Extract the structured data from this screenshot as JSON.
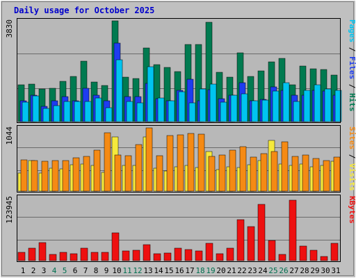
{
  "title": "Daily usage for October 2025",
  "colors": {
    "background": "#c0c0c0",
    "plot_bg": "#b8b8b8",
    "grid": "#6a6a6a",
    "title": "#0000cc",
    "pages": "#00c4f0",
    "files": "#1e3cf0",
    "hits": "#007a50",
    "visits": "#f5e93c",
    "sites": "#f58a14",
    "kbytes": "#ee1010",
    "weekend_label": "#007050",
    "weekday_label": "#000000"
  },
  "chart_data": [
    {
      "type": "bar",
      "panel": "top",
      "axis_max_label": "3830",
      "ylim": [
        0,
        3830
      ],
      "right_label": [
        "Pages",
        "Files",
        "Hits"
      ],
      "categories": [
        "1",
        "2",
        "3",
        "4",
        "5",
        "6",
        "7",
        "8",
        "9",
        "10",
        "11",
        "12",
        "13",
        "14",
        "15",
        "16",
        "17",
        "18",
        "19",
        "20",
        "21",
        "22",
        "23",
        "24",
        "25",
        "26",
        "27",
        "28",
        "29",
        "30",
        "31"
      ],
      "weekend_days": [
        4,
        5,
        11,
        12,
        18,
        19,
        25,
        26
      ],
      "series": [
        {
          "name": "Hits",
          "color": "#007a50",
          "values": [
            1400,
            1420,
            1230,
            1270,
            1530,
            1720,
            2300,
            1510,
            1380,
            3830,
            1700,
            1640,
            2790,
            2170,
            2060,
            1910,
            2940,
            2930,
            3790,
            1870,
            1680,
            2620,
            1720,
            1930,
            2270,
            2400,
            1400,
            2120,
            2020,
            1970,
            1780
          ]
        },
        {
          "name": "Files",
          "color": "#1e3cf0",
          "values": [
            790,
            1000,
            580,
            780,
            940,
            790,
            1280,
            1000,
            780,
            2980,
            950,
            950,
            1440,
            880,
            800,
            1190,
            1600,
            790,
            1220,
            880,
            1000,
            1480,
            800,
            850,
            1320,
            1200,
            1000,
            1000,
            1200,
            1150,
            1000
          ]
        },
        {
          "name": "Pages",
          "color": "#00c4f0",
          "values": [
            750,
            990,
            490,
            600,
            760,
            760,
            760,
            890,
            530,
            2350,
            760,
            710,
            2090,
            890,
            780,
            1140,
            710,
            1250,
            1430,
            740,
            1000,
            1050,
            800,
            820,
            1150,
            1470,
            770,
            1180,
            1390,
            1250,
            1200
          ]
        }
      ]
    },
    {
      "type": "bar",
      "panel": "middle",
      "axis_max_label": "1044",
      "ylim": [
        0,
        1044
      ],
      "right_label": [
        "Sites",
        "Visits"
      ],
      "categories": [
        "1",
        "2",
        "3",
        "4",
        "5",
        "6",
        "7",
        "8",
        "9",
        "10",
        "11",
        "12",
        "13",
        "14",
        "15",
        "16",
        "17",
        "18",
        "19",
        "20",
        "21",
        "22",
        "23",
        "24",
        "25",
        "26",
        "27",
        "28",
        "29",
        "30",
        "31"
      ],
      "series": [
        {
          "name": "Visits",
          "color": "#f5e93c",
          "values": [
            300,
            500,
            300,
            380,
            370,
            440,
            450,
            430,
            310,
            890,
            420,
            420,
            890,
            380,
            330,
            400,
            430,
            390,
            650,
            350,
            400,
            390,
            440,
            510,
            840,
            450,
            420,
            450,
            400,
            430,
            490
          ]
        },
        {
          "name": "Sites",
          "color": "#f58a14",
          "values": [
            520,
            510,
            490,
            510,
            500,
            550,
            570,
            680,
            960,
            600,
            590,
            770,
            1044,
            580,
            920,
            930,
            950,
            940,
            570,
            600,
            680,
            730,
            560,
            620,
            650,
            810,
            570,
            600,
            540,
            510,
            560
          ]
        }
      ]
    },
    {
      "type": "bar",
      "panel": "bottom",
      "axis_max_label": "123945",
      "ylim": [
        0,
        123945
      ],
      "right_label": [
        "KBytes"
      ],
      "categories": [
        "1",
        "2",
        "3",
        "4",
        "5",
        "6",
        "7",
        "8",
        "9",
        "10",
        "11",
        "12",
        "13",
        "14",
        "15",
        "16",
        "17",
        "18",
        "19",
        "20",
        "21",
        "22",
        "23",
        "24",
        "25",
        "26",
        "27",
        "28",
        "29",
        "30",
        "31"
      ],
      "series": [
        {
          "name": "KBytes",
          "color": "#ee1010",
          "values": [
            16000,
            24000,
            35000,
            12000,
            16000,
            14000,
            24000,
            17000,
            17000,
            54000,
            19000,
            20000,
            32000,
            13000,
            15000,
            25000,
            22000,
            19000,
            34000,
            14000,
            24000,
            80000,
            67000,
            110000,
            40000,
            12000,
            118000,
            28000,
            20000,
            8000,
            34000
          ]
        }
      ]
    }
  ]
}
